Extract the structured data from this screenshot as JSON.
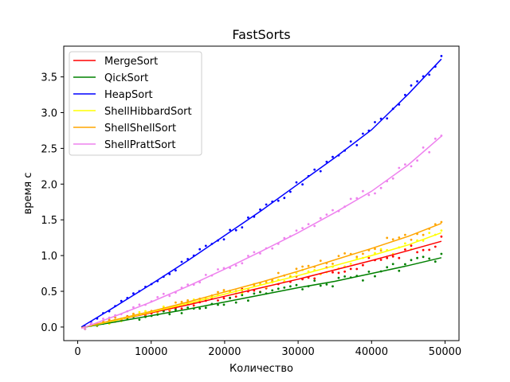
{
  "chart_data": {
    "type": "line",
    "title": "FastSorts",
    "xlabel": "Количество",
    "ylabel": "время с",
    "xlim": [
      -1900,
      51900
    ],
    "ylim": [
      -0.19,
      3.93
    ],
    "xticks": [
      0,
      10000,
      20000,
      30000,
      40000,
      50000
    ],
    "xtick_labels": [
      "0",
      "10000",
      "20000",
      "30000",
      "40000",
      "50000"
    ],
    "yticks": [
      0.0,
      0.5,
      1.0,
      1.5,
      2.0,
      2.5,
      3.0,
      3.5
    ],
    "ytick_labels": [
      "0.0",
      "0.5",
      "1.0",
      "1.5",
      "2.0",
      "2.5",
      "3.0",
      "3.5"
    ],
    "grid": false,
    "legend_position": "upper-left",
    "x": [
      500,
      5000,
      10000,
      15000,
      20000,
      25000,
      30000,
      35000,
      40000,
      45000,
      49500
    ],
    "series": [
      {
        "name": "MergeSort",
        "color": "#ff0000",
        "values": [
          -0.01,
          0.09,
          0.2,
          0.31,
          0.43,
          0.55,
          0.67,
          0.8,
          0.93,
          1.07,
          1.2
        ]
      },
      {
        "name": "QickSort",
        "color": "#008000",
        "values": [
          -0.01,
          0.07,
          0.16,
          0.25,
          0.35,
          0.45,
          0.55,
          0.64,
          0.75,
          0.86,
          0.97
        ]
      },
      {
        "name": "HeapSort",
        "color": "#0000ff",
        "values": [
          0.0,
          0.28,
          0.6,
          0.93,
          1.28,
          1.63,
          2.0,
          2.37,
          2.76,
          3.26,
          3.75
        ]
      },
      {
        "name": "ShellHibbardSort",
        "color": "#ffff00",
        "values": [
          -0.01,
          0.09,
          0.21,
          0.33,
          0.46,
          0.59,
          0.72,
          0.86,
          1.0,
          1.15,
          1.32
        ]
      },
      {
        "name": "ShellShellSort",
        "color": "#ffa500",
        "values": [
          -0.01,
          0.1,
          0.22,
          0.35,
          0.49,
          0.63,
          0.78,
          0.94,
          1.1,
          1.27,
          1.45
        ]
      },
      {
        "name": "ShellPrattSort",
        "color": "#ee82ee",
        "values": [
          -0.02,
          0.15,
          0.35,
          0.57,
          0.81,
          1.06,
          1.32,
          1.6,
          1.9,
          2.27,
          2.67
        ]
      }
    ]
  }
}
